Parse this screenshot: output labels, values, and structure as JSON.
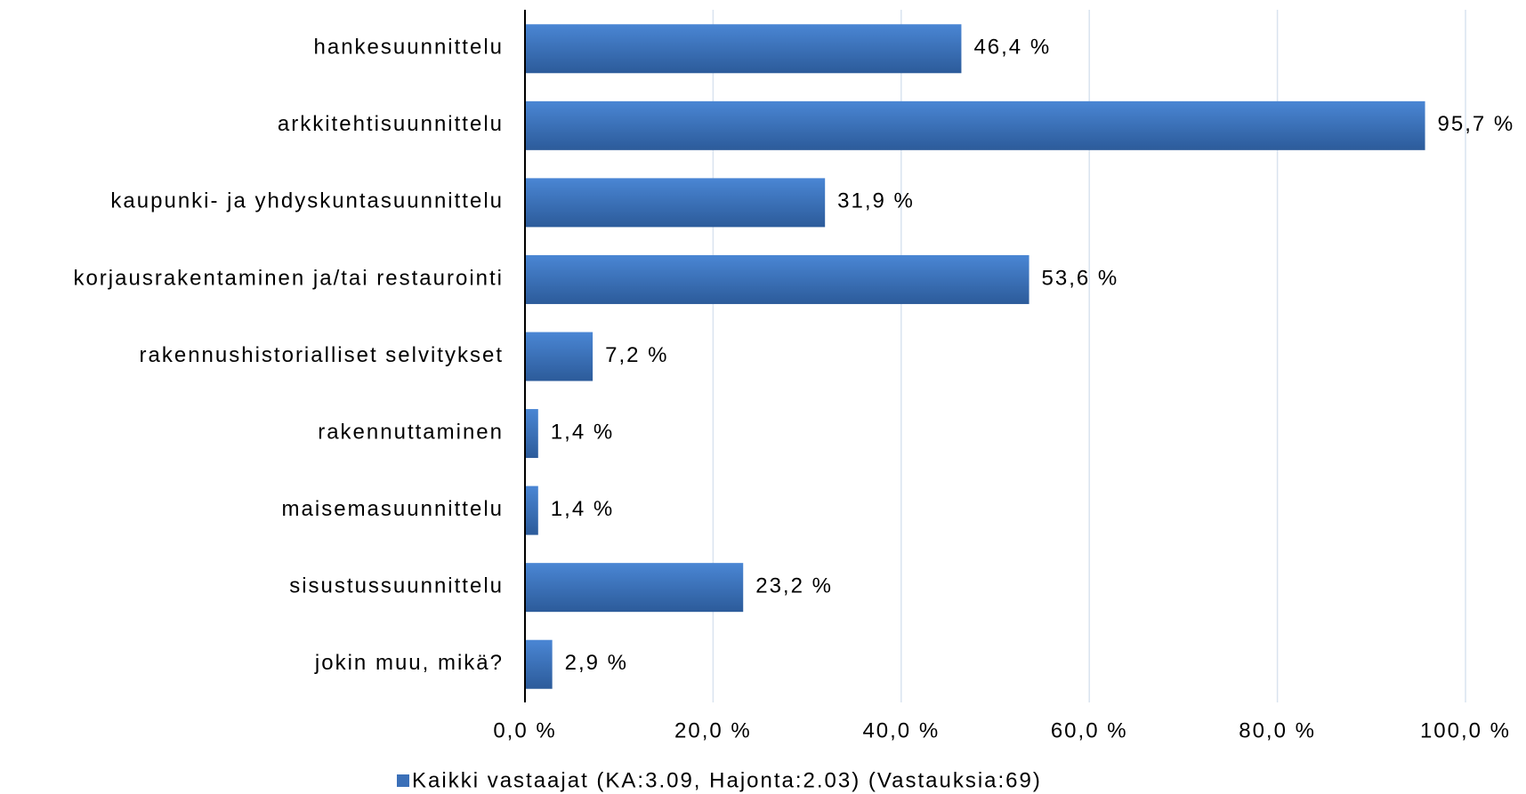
{
  "chart_data": {
    "type": "bar",
    "orientation": "horizontal",
    "categories": [
      "hankesuunnittelu",
      "arkkitehtisuunnittelu",
      "kaupunki- ja yhdyskuntasuunnittelu",
      "korjausrakentaminen ja/tai restaurointi",
      "rakennushistorialliset selvitykset",
      "rakennuttaminen",
      "maisemasuunnittelu",
      "sisustussuunnittelu",
      "jokin muu, mikä?"
    ],
    "series": [
      {
        "name": "Kaikki vastaajat (KA:3.09, Hajonta:2.03) (Vastauksia:69)",
        "color": "#3b70b8",
        "values": [
          46.4,
          95.7,
          31.9,
          53.6,
          7.2,
          1.4,
          1.4,
          23.2,
          2.9
        ],
        "value_labels": [
          "46,4 %",
          "95,7 %",
          "31,9 %",
          "53,6 %",
          "7,2 %",
          "1,4 %",
          "1,4 %",
          "23,2 %",
          "2,9 %"
        ]
      }
    ],
    "xlim": [
      0,
      100
    ],
    "xticks": [
      {
        "value": 0,
        "label": "0,0 %"
      },
      {
        "value": 20,
        "label": "20,0 %"
      },
      {
        "value": 40,
        "label": "40,0 %"
      },
      {
        "value": 60,
        "label": "60,0 %"
      },
      {
        "value": 80,
        "label": "80,0 %"
      },
      {
        "value": 100,
        "label": "100,0 %"
      }
    ],
    "grid": true,
    "legend": "bottom"
  }
}
